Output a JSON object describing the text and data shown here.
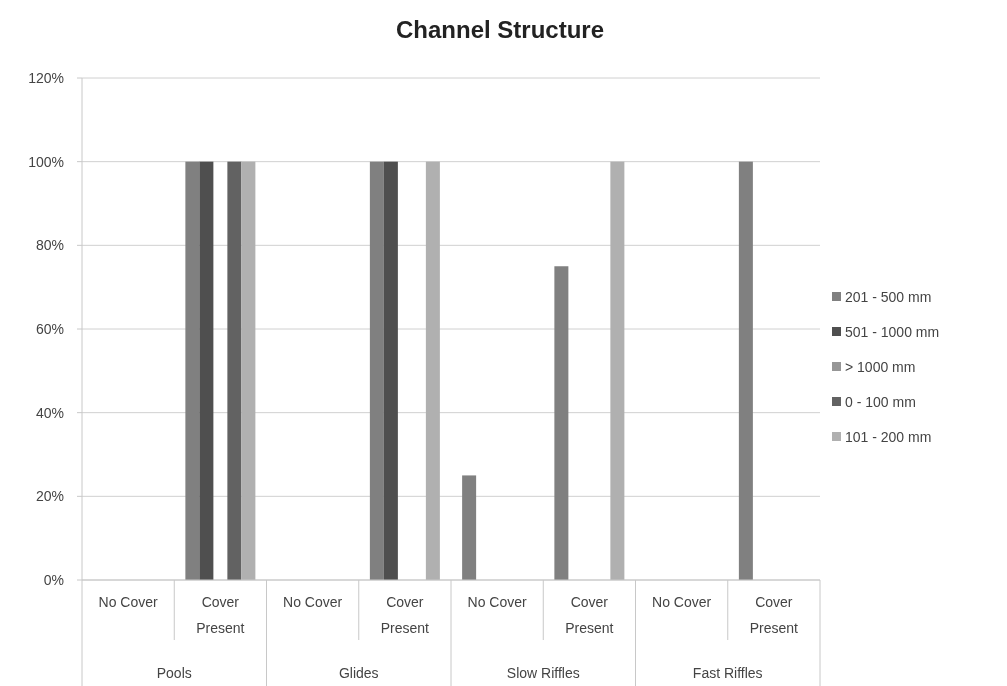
{
  "chart_data": {
    "type": "bar",
    "title": "Channel Structure",
    "categories": [
      "No Cover",
      "Cover Present",
      "No Cover",
      "Cover Present",
      "No Cover",
      "Cover Present",
      "No Cover",
      "Cover Present"
    ],
    "annotations": [
      "Pools",
      "Glides",
      "Slow Riffles",
      "Fast Riffles"
    ],
    "series": [
      {
        "name": "201 - 500 mm",
        "color": "#808080",
        "values": [
          0,
          100,
          0,
          100,
          25,
          75,
          0,
          100
        ]
      },
      {
        "name": "501 - 1000 mm",
        "color": "#4f4f4f",
        "values": [
          0,
          100,
          0,
          100,
          0,
          0,
          0,
          0
        ]
      },
      {
        "name": "> 1000 mm",
        "color": "#969696",
        "values": [
          0,
          0,
          0,
          0,
          0,
          0,
          0,
          0
        ]
      },
      {
        "name": "0 - 100 mm",
        "color": "#626262",
        "values": [
          0,
          100,
          0,
          0,
          0,
          0,
          0,
          0
        ]
      },
      {
        "name": "101 - 200 mm",
        "color": "#b0b0b0",
        "values": [
          0,
          100,
          0,
          100,
          0,
          100,
          0,
          0
        ]
      }
    ],
    "ylim": [
      0,
      120
    ],
    "yticks": [
      {
        "value": 0,
        "label": "0%"
      },
      {
        "value": 20,
        "label": "20%"
      },
      {
        "value": 40,
        "label": "40%"
      },
      {
        "value": 60,
        "label": "60%"
      },
      {
        "value": 80,
        "label": "80%"
      },
      {
        "value": 100,
        "label": "100%"
      },
      {
        "value": 120,
        "label": "120%"
      }
    ],
    "grid": "y",
    "legend": "right"
  }
}
